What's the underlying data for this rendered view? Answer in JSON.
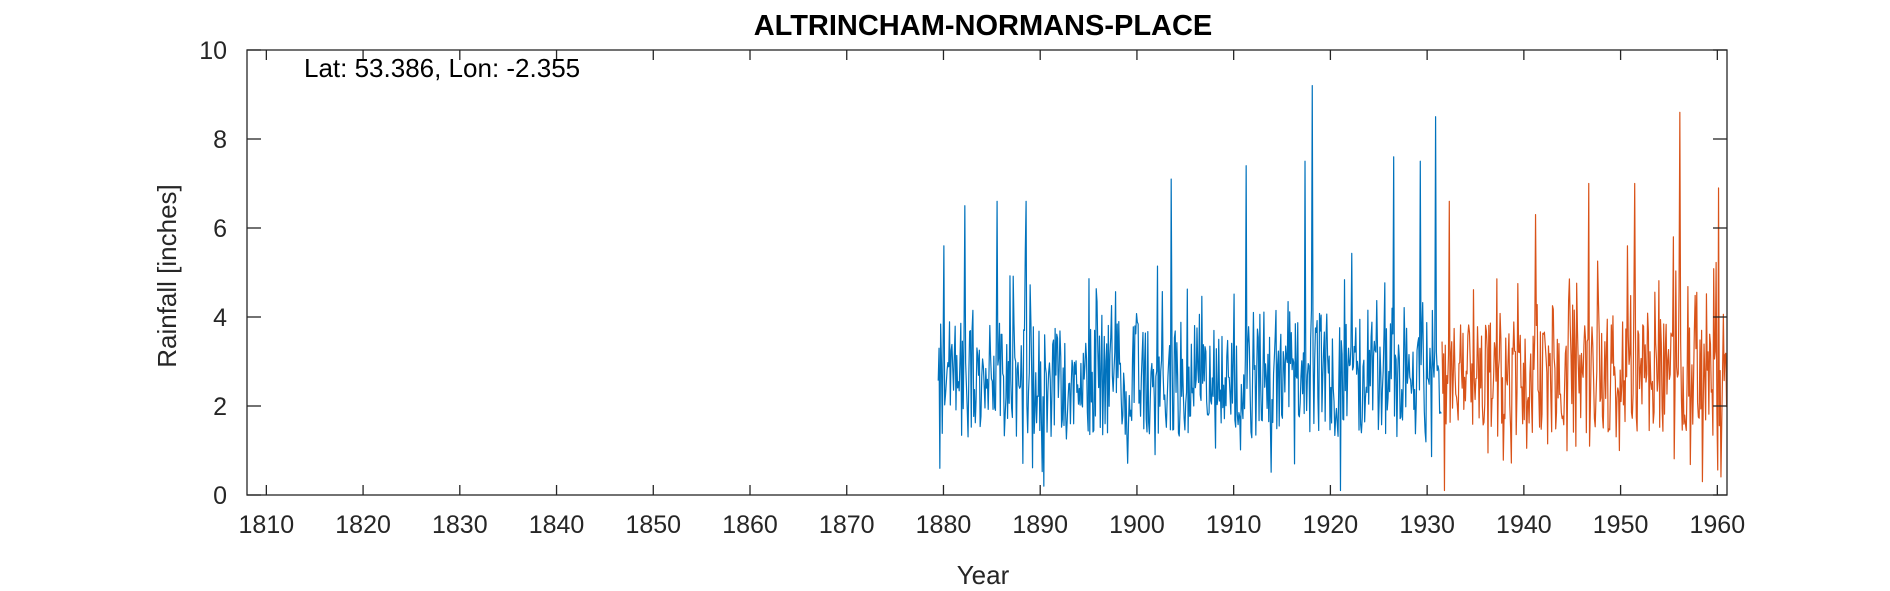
{
  "chart_data": {
    "type": "line",
    "title": "ALTRINCHAM-NORMANS-PLACE",
    "xlabel": "Year",
    "ylabel": "Rainfall [inches]",
    "annotation": "Lat: 53.386, Lon: -2.355",
    "xlim": [
      1808,
      1961
    ],
    "ylim": [
      0,
      10
    ],
    "xticks": [
      1810,
      1820,
      1830,
      1840,
      1850,
      1860,
      1870,
      1880,
      1890,
      1900,
      1910,
      1920,
      1930,
      1940,
      1950,
      1960
    ],
    "yticks": [
      0,
      2,
      4,
      6,
      8,
      10
    ],
    "grid": false,
    "series_colors": [
      "#0072BD",
      "#D95319"
    ],
    "series": [
      {
        "x_start": "1879-06",
        "x_end": "1931-06",
        "frequency": "monthly",
        "notable_points": [
          {
            "x": 1879.6,
            "y": 0.6
          },
          {
            "x": 1880.0,
            "y": 5.6
          },
          {
            "x": 1882.2,
            "y": 6.5
          },
          {
            "x": 1885.5,
            "y": 6.6
          },
          {
            "x": 1888.5,
            "y": 6.6
          },
          {
            "x": 1890.4,
            "y": 0.2
          },
          {
            "x": 1903.5,
            "y": 7.1
          },
          {
            "x": 1911.3,
            "y": 7.4
          },
          {
            "x": 1917.4,
            "y": 7.5
          },
          {
            "x": 1918.1,
            "y": 9.2
          },
          {
            "x": 1921.0,
            "y": 0.1
          },
          {
            "x": 1926.5,
            "y": 7.6
          },
          {
            "x": 1929.3,
            "y": 7.5
          },
          {
            "x": 1930.9,
            "y": 8.5
          }
        ]
      },
      {
        "x_start": "1931-07",
        "x_end": "1960-12",
        "frequency": "monthly",
        "notable_points": [
          {
            "x": 1931.8,
            "y": 0.1
          },
          {
            "x": 1932.3,
            "y": 6.6
          },
          {
            "x": 1941.2,
            "y": 6.3
          },
          {
            "x": 1946.7,
            "y": 7.0
          },
          {
            "x": 1951.5,
            "y": 7.0
          },
          {
            "x": 1955.5,
            "y": 5.8
          },
          {
            "x": 1956.1,
            "y": 8.6
          },
          {
            "x": 1958.5,
            "y": 0.3
          },
          {
            "x": 1960.1,
            "y": 6.9
          }
        ]
      }
    ]
  }
}
